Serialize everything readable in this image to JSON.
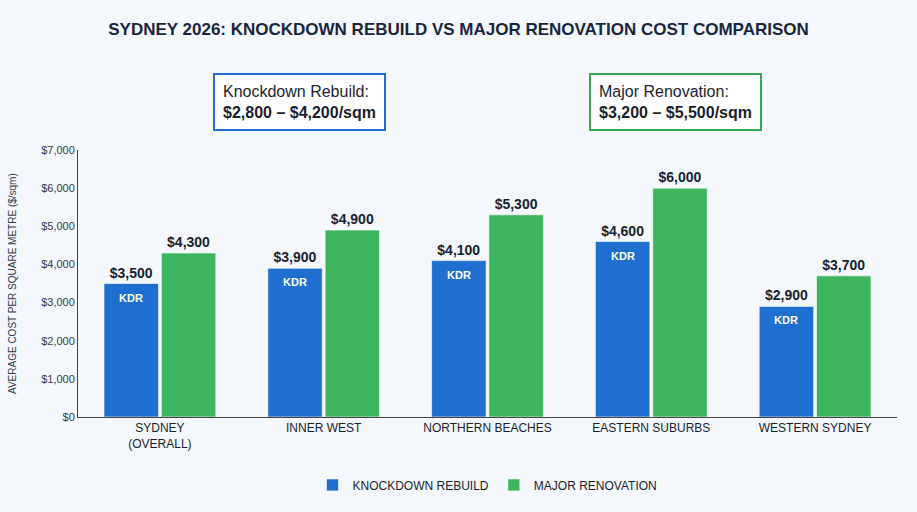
{
  "chart_data": {
    "type": "bar",
    "title": "SYDNEY 2026: KNOCKDOWN REBUILD VS MAJOR RENOVATION COST COMPARISON",
    "annotations": [
      {
        "label": "Knockdown Rebuild:",
        "text": "$2,800 – $4,200/sqm",
        "color": "#1f6fd1"
      },
      {
        "label": "Major Renovation:",
        "text": "$3,200 – $5,500/sqm",
        "color": "#34a853"
      }
    ],
    "y_label": "AVERAGE COST PER SQUARE METRE ($/sqm)",
    "categories": [
      "SYDNEY\n(OVERALL)",
      "INNER WEST",
      "NORTHERN BEACHES",
      "EASTERN SUBURBS",
      "WESTERN SYDNEY"
    ],
    "series": [
      {
        "name": "KNOCKDOWN REBUILD",
        "color": "#1f6fd1",
        "inside_text": "KDR",
        "values": [
          3500,
          3900,
          4100,
          4600,
          2900
        ],
        "value_labels": [
          "$3,500",
          "$3,900",
          "$4,100",
          "$4,600",
          "$2,900"
        ]
      },
      {
        "name": "MAJOR RENOVATION",
        "color": "#3cb55e",
        "values": [
          4300,
          4900,
          5300,
          6000,
          3700
        ],
        "value_labels": [
          "$4,300",
          "$4,900",
          "$5,300",
          "$6,000",
          "$3,700"
        ]
      }
    ],
    "ylim": [
      0,
      7000
    ],
    "yticks": [
      {
        "value": 0,
        "label": "$0"
      },
      {
        "value": 1000,
        "label": "$1,000"
      },
      {
        "value": 2000,
        "label": "$2,000"
      },
      {
        "value": 3000,
        "label": "$3,000"
      },
      {
        "value": 4000,
        "label": "$4,000"
      },
      {
        "value": 5000,
        "label": "$5,000"
      },
      {
        "value": 6000,
        "label": "$6,000"
      },
      {
        "value": 7000,
        "label": "$7,000"
      }
    ],
    "grid": false,
    "data_labels": true,
    "legend": "bottom"
  }
}
